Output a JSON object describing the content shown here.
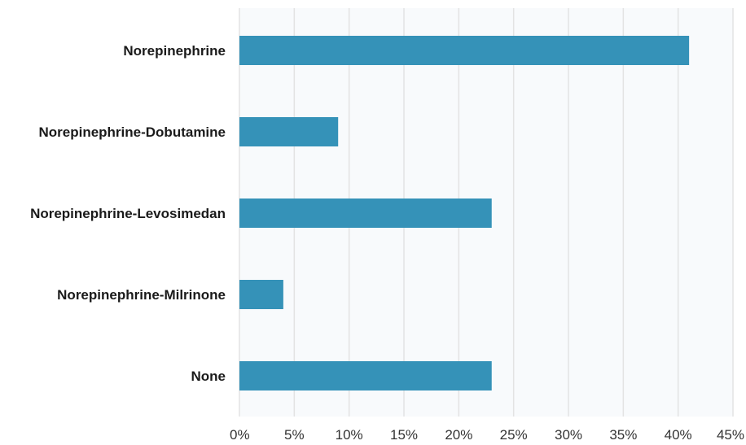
{
  "chart_data": {
    "type": "bar",
    "orientation": "horizontal",
    "categories": [
      "Norepinephrine",
      "Norepinephrine-Dobutamine",
      "Norepinephrine-Levosimedan",
      "Norepinephrine-Milrinone",
      "None"
    ],
    "values": [
      41,
      9,
      23,
      4,
      23
    ],
    "unit": "%",
    "xlim": [
      0,
      45
    ],
    "xticks": [
      0,
      5,
      10,
      15,
      20,
      25,
      30,
      35,
      40,
      45
    ],
    "xtick_labels": [
      "0%",
      "5%",
      "10%",
      "15%",
      "20%",
      "25%",
      "30%",
      "35%",
      "40%",
      "45%"
    ],
    "title": "",
    "xlabel": "",
    "ylabel": "",
    "grid": "vertical",
    "legend": "none",
    "colors": {
      "bar": "#3592b8",
      "grid": "#e3e3e3",
      "plot_background": "#f8fafc"
    }
  }
}
